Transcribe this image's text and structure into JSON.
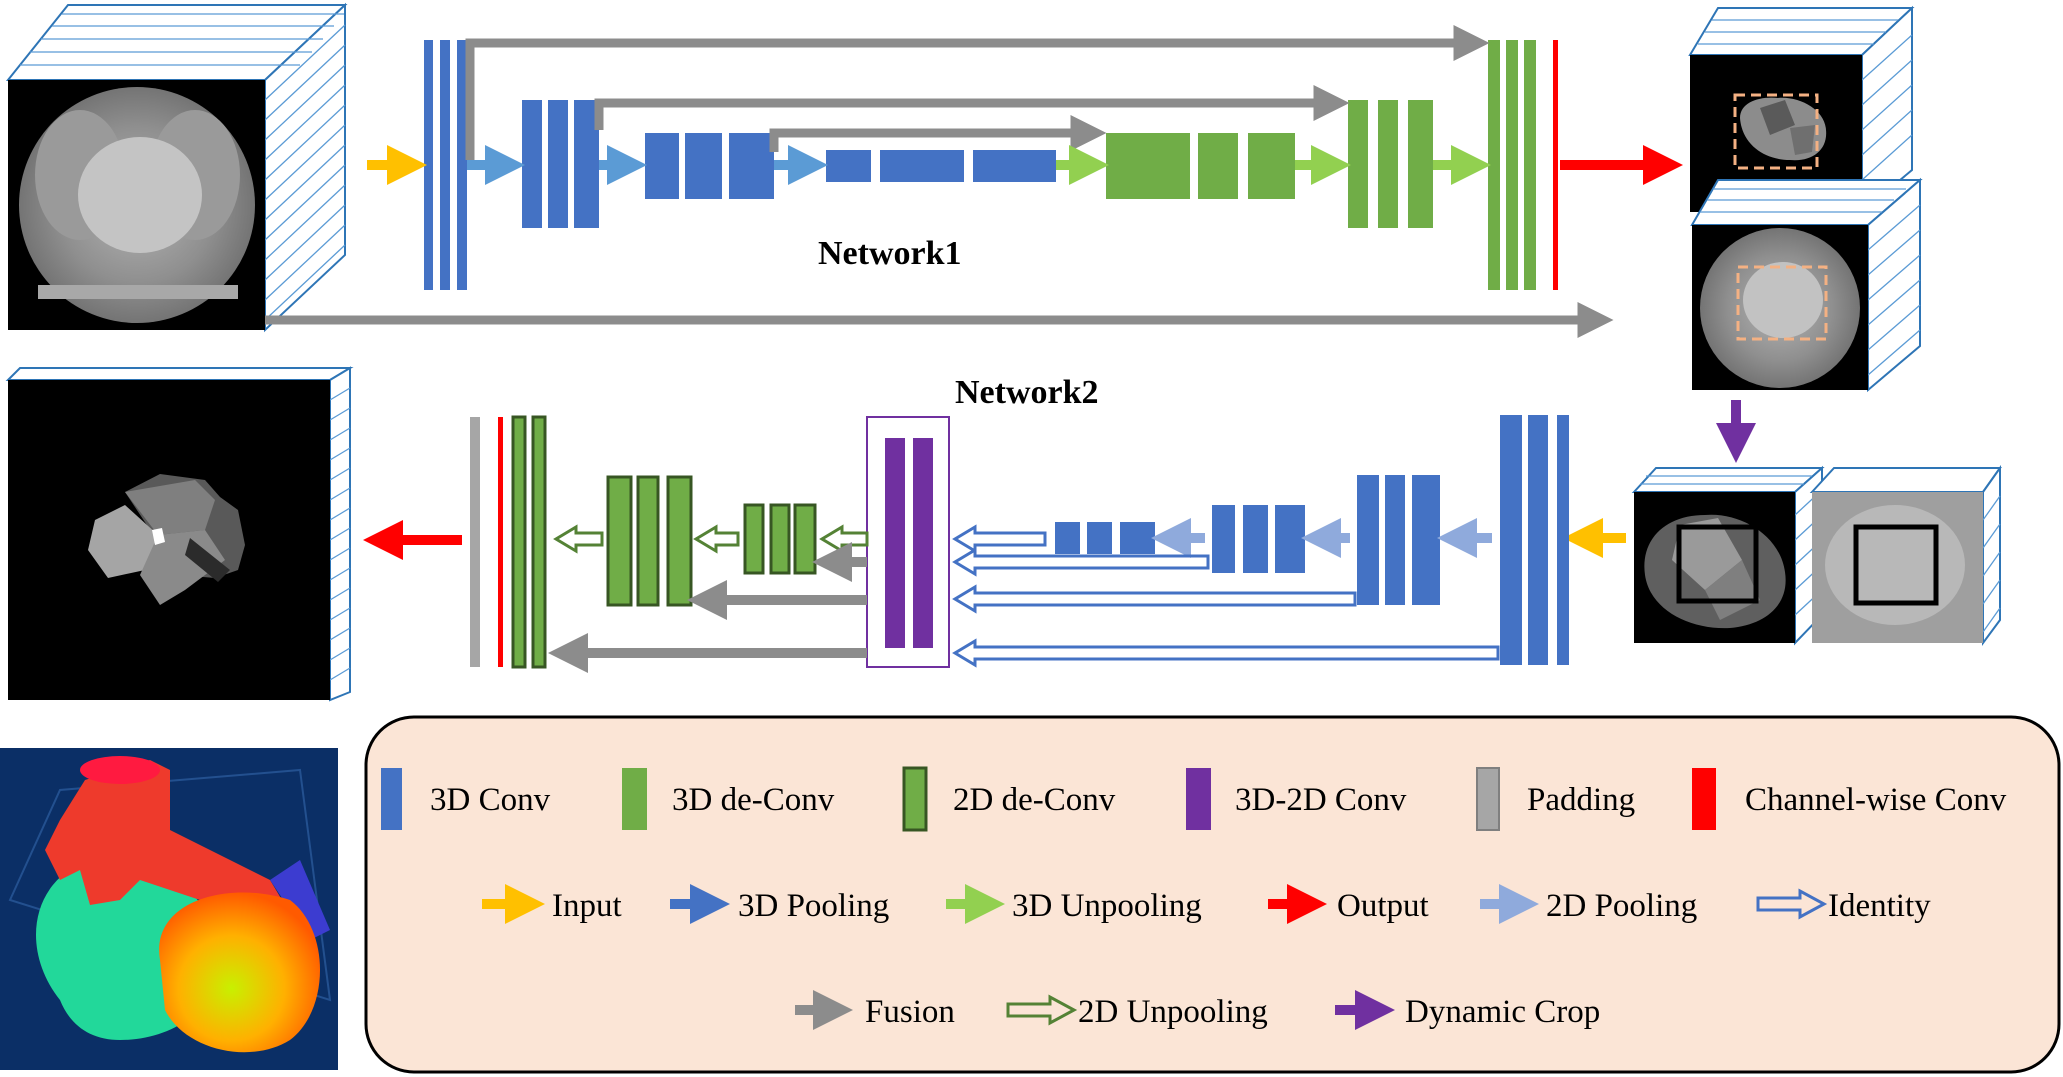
{
  "titles": {
    "network1": "Network1",
    "network2": "Network2"
  },
  "legend": {
    "blocks": [
      {
        "key": "conv3d",
        "label": "3D Conv",
        "color": "#4472c4"
      },
      {
        "key": "deconv3d",
        "label": "3D de-Conv",
        "color": "#70ad47"
      },
      {
        "key": "deconv2d",
        "label": "2D de-Conv",
        "color": "#548235"
      },
      {
        "key": "conv3d2d",
        "label": "3D-2D Conv",
        "color": "#7030a0"
      },
      {
        "key": "padding",
        "label": "Padding",
        "color": "#a6a6a6"
      },
      {
        "key": "chconv",
        "label": "Channel-wise Conv",
        "color": "#ff0000"
      }
    ],
    "arrows_row1": [
      {
        "key": "input",
        "label": "Input",
        "color": "#ffc000"
      },
      {
        "key": "pool3d",
        "label": "3D Pooling",
        "color": "#4472c4"
      },
      {
        "key": "unpool3d",
        "label": "3D Unpooling",
        "color": "#92d050"
      },
      {
        "key": "output",
        "label": "Output",
        "color": "#ff0000"
      },
      {
        "key": "pool2d",
        "label": "2D Pooling",
        "color": "#8faadc"
      },
      {
        "key": "identity",
        "label": "Identity",
        "color": "#4472c4"
      }
    ],
    "arrows_row2": [
      {
        "key": "fusion",
        "label": "Fusion",
        "color": "#8c8c8c"
      },
      {
        "key": "unpool2d",
        "label": "2D Unpooling",
        "color": "#548235"
      },
      {
        "key": "crop",
        "label": "Dynamic Crop",
        "color": "#7030a0"
      }
    ]
  },
  "colors": {
    "legend_box_bg": "#fbe5d6",
    "slice_edge": "#2e75b6",
    "render_bg": "#0b2f66"
  }
}
